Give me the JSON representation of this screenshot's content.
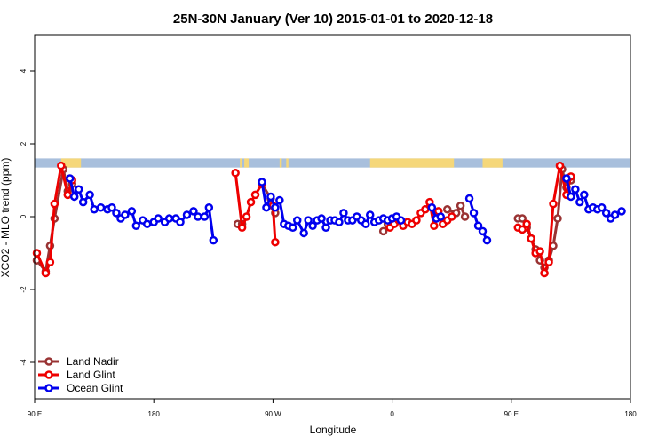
{
  "chart_data": {
    "type": "line",
    "title": "25N-30N January (Ver 10)   2015-01-01 to 2020-12-18",
    "xlabel": "Longitude",
    "ylabel": "XCO2 - MLO trend (ppm)",
    "xlim": [
      -90,
      180
    ],
    "ylim": [
      -5,
      5
    ],
    "x_ticks": [
      {
        "value": -90,
        "label": "90 E"
      },
      {
        "value": -36,
        "label": "180"
      },
      {
        "value": 18,
        "label": "90 W"
      },
      {
        "value": 72,
        "label": "0"
      },
      {
        "value": 126,
        "label": "90 E"
      },
      {
        "value": 180,
        "label": "180"
      }
    ],
    "y_ticks": [
      -4,
      -2,
      0,
      2,
      4
    ],
    "land_mask": {
      "y_range": [
        1.35,
        1.6
      ],
      "ocean_color": "#a8bfdc",
      "land_color": "#f5d77a",
      "land_segments": [
        [
          -78,
          -69
        ],
        [
          3,
          4
        ],
        [
          5,
          7
        ],
        [
          21,
          22
        ],
        [
          24,
          25
        ],
        [
          62,
          100
        ],
        [
          113,
          122
        ]
      ]
    },
    "legend": {
      "position": "bottom-left",
      "entries": [
        "Land Nadir",
        "Land Glint",
        "Ocean Glint"
      ]
    },
    "series": [
      {
        "name": "Land Nadir",
        "color": "#993333",
        "segments": [
          [
            [
              -89,
              -1.2
            ],
            [
              -85,
              -1.5
            ],
            [
              -83,
              -0.8
            ],
            [
              -81,
              -0.05
            ],
            [
              -77,
              1.3
            ],
            [
              -75,
              0.7
            ],
            [
              -73,
              0.9
            ]
          ],
          [
            [
              2,
              -0.2
            ],
            [
              4,
              -0.2
            ]
          ],
          [
            [
              13,
              0.9
            ],
            [
              17,
              0.5
            ],
            [
              19,
              0.1
            ]
          ],
          [
            [
              68,
              -0.4
            ],
            [
              70,
              -0.2
            ]
          ],
          [
            [
              97,
              0.2
            ],
            [
              101,
              0.1
            ],
            [
              103,
              0.3
            ],
            [
              105,
              0.0
            ]
          ],
          [
            [
              129,
              -0.05
            ],
            [
              131,
              -0.05
            ],
            [
              133,
              -0.3
            ],
            [
              135,
              -0.6
            ],
            [
              137,
              -0.9
            ],
            [
              139,
              -1.2
            ],
            [
              141,
              -1.4
            ],
            [
              143,
              -1.2
            ],
            [
              145,
              -0.8
            ],
            [
              147,
              -0.05
            ],
            [
              149,
              1.3
            ],
            [
              151,
              0.8
            ],
            [
              153,
              1.0
            ]
          ]
        ]
      },
      {
        "name": "Land Glint",
        "color": "#ee0000",
        "segments": [
          [
            [
              -89,
              -1.0
            ],
            [
              -85,
              -1.55
            ],
            [
              -83,
              -1.25
            ],
            [
              -81,
              0.35
            ],
            [
              -78,
              1.4
            ],
            [
              -75,
              0.6
            ],
            [
              -73,
              1.0
            ]
          ],
          [
            [
              1,
              1.2
            ],
            [
              4,
              -0.3
            ],
            [
              6,
              0.0
            ],
            [
              8,
              0.4
            ],
            [
              10,
              0.6
            ],
            [
              13,
              0.9
            ]
          ],
          [
            [
              18,
              0.3
            ],
            [
              19,
              -0.7
            ]
          ],
          [
            [
              71,
              -0.3
            ],
            [
              73,
              -0.2
            ],
            [
              75,
              -0.1
            ],
            [
              77,
              -0.25
            ],
            [
              79,
              -0.15
            ],
            [
              81,
              -0.2
            ],
            [
              83,
              -0.1
            ],
            [
              85,
              0.1
            ],
            [
              87,
              0.2
            ],
            [
              89,
              0.4
            ],
            [
              91,
              -0.25
            ],
            [
              93,
              0.15
            ],
            [
              95,
              -0.2
            ],
            [
              97,
              -0.1
            ],
            [
              99,
              0.0
            ]
          ],
          [
            [
              129,
              -0.3
            ],
            [
              131,
              -0.35
            ],
            [
              133,
              -0.2
            ],
            [
              135,
              -0.6
            ],
            [
              137,
              -1.0
            ],
            [
              139,
              -0.95
            ],
            [
              141,
              -1.55
            ],
            [
              143,
              -1.25
            ],
            [
              145,
              0.35
            ],
            [
              148,
              1.4
            ],
            [
              151,
              0.6
            ],
            [
              153,
              1.1
            ]
          ]
        ]
      },
      {
        "name": "Ocean Glint",
        "color": "#0000ee",
        "segments": [
          [
            [
              -74,
              1.05
            ],
            [
              -72,
              0.55
            ],
            [
              -70,
              0.75
            ],
            [
              -68,
              0.4
            ],
            [
              -65,
              0.6
            ],
            [
              -63,
              0.2
            ],
            [
              -60,
              0.25
            ],
            [
              -57,
              0.2
            ],
            [
              -55,
              0.25
            ],
            [
              -53,
              0.1
            ],
            [
              -51,
              -0.05
            ],
            [
              -49,
              0.05
            ],
            [
              -46,
              0.15
            ],
            [
              -44,
              -0.25
            ],
            [
              -41,
              -0.1
            ],
            [
              -39,
              -0.2
            ],
            [
              -36,
              -0.15
            ],
            [
              -34,
              -0.05
            ],
            [
              -31,
              -0.15
            ],
            [
              -29,
              -0.05
            ],
            [
              -26,
              -0.05
            ],
            [
              -24,
              -0.15
            ],
            [
              -21,
              0.05
            ],
            [
              -18,
              0.15
            ],
            [
              -16,
              0.0
            ],
            [
              -13,
              0.0
            ],
            [
              -11,
              0.25
            ],
            [
              -9,
              -0.65
            ]
          ],
          [
            [
              13,
              0.95
            ],
            [
              15,
              0.25
            ],
            [
              17,
              0.55
            ],
            [
              19,
              0.25
            ],
            [
              21,
              0.45
            ],
            [
              23,
              -0.2
            ],
            [
              25,
              -0.25
            ],
            [
              27,
              -0.3
            ],
            [
              29,
              -0.1
            ],
            [
              32,
              -0.45
            ],
            [
              34,
              -0.1
            ],
            [
              36,
              -0.25
            ],
            [
              38,
              -0.1
            ],
            [
              40,
              -0.05
            ],
            [
              42,
              -0.3
            ],
            [
              44,
              -0.1
            ],
            [
              46,
              -0.1
            ],
            [
              48,
              -0.15
            ],
            [
              50,
              0.1
            ],
            [
              52,
              -0.1
            ],
            [
              54,
              -0.1
            ],
            [
              56,
              0.0
            ],
            [
              58,
              -0.1
            ],
            [
              60,
              -0.2
            ],
            [
              62,
              0.05
            ],
            [
              64,
              -0.15
            ],
            [
              66,
              -0.1
            ],
            [
              68,
              -0.05
            ],
            [
              70,
              -0.1
            ],
            [
              72,
              -0.05
            ],
            [
              74,
              0.0
            ],
            [
              76,
              -0.1
            ]
          ],
          [
            [
              90,
              0.25
            ],
            [
              92,
              -0.05
            ],
            [
              94,
              0.0
            ]
          ],
          [
            [
              107,
              0.5
            ],
            [
              109,
              0.1
            ],
            [
              111,
              -0.25
            ],
            [
              113,
              -0.4
            ],
            [
              115,
              -0.65
            ]
          ],
          [
            [
              151,
              1.05
            ],
            [
              153,
              0.55
            ],
            [
              155,
              0.75
            ],
            [
              157,
              0.4
            ],
            [
              159,
              0.6
            ],
            [
              161,
              0.2
            ],
            [
              163,
              0.25
            ],
            [
              165,
              0.2
            ],
            [
              167,
              0.25
            ],
            [
              169,
              0.1
            ],
            [
              171,
              -0.05
            ],
            [
              173,
              0.05
            ],
            [
              176,
              0.15
            ]
          ]
        ]
      }
    ]
  }
}
